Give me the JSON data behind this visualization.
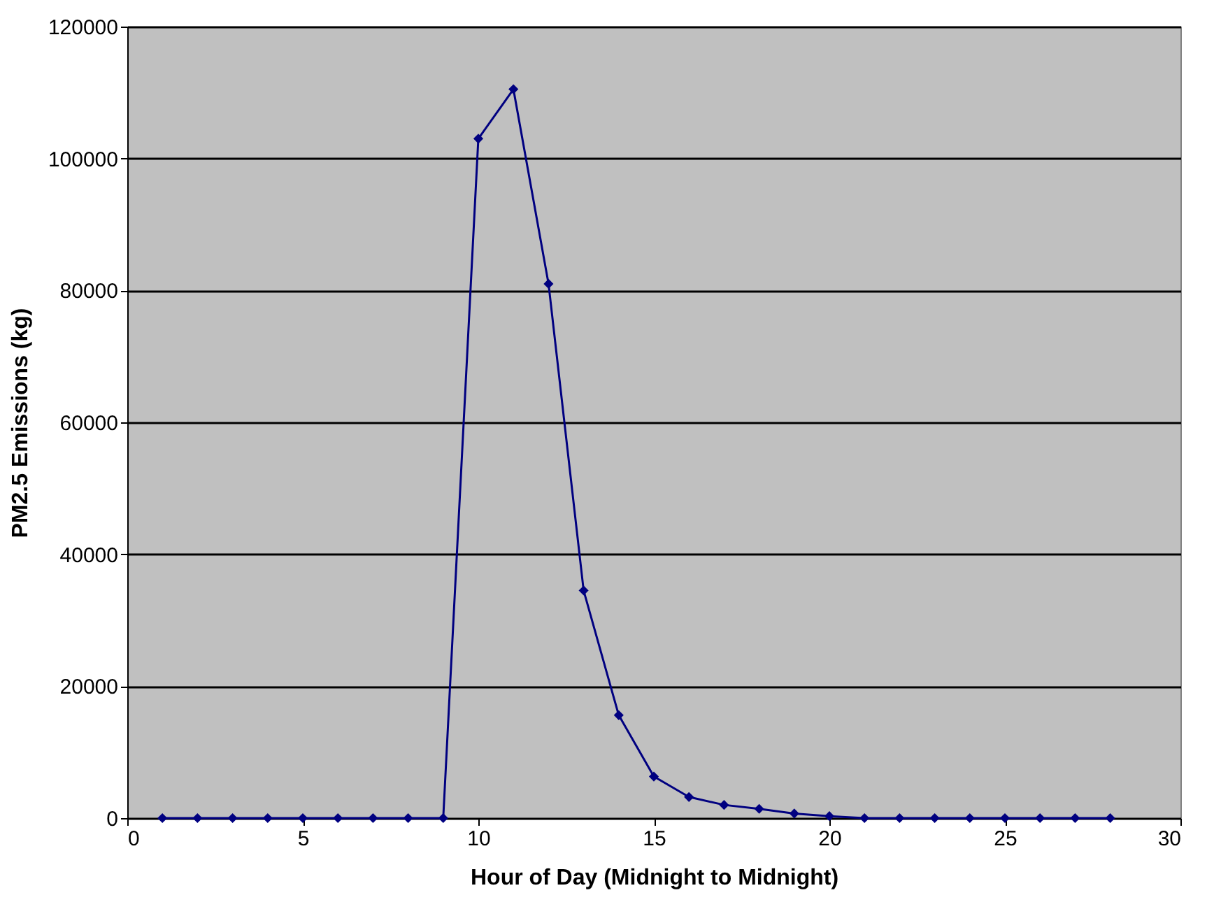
{
  "chart_data": {
    "type": "line",
    "xlabel": "Hour of Day (Midnight to Midnight)",
    "ylabel": "PM2.5 Emissions (kg)",
    "x": [
      1,
      2,
      3,
      4,
      5,
      6,
      7,
      8,
      9,
      10,
      11,
      12,
      13,
      14,
      15,
      16,
      17,
      18,
      19,
      20,
      21,
      22,
      23,
      24,
      25,
      26,
      27,
      28
    ],
    "series": [
      {
        "color": "#000080",
        "values": [
          0,
          0,
          0,
          0,
          0,
          0,
          0,
          0,
          0,
          103000,
          110500,
          81000,
          34500,
          15600,
          6300,
          3200,
          2000,
          1400,
          700,
          300,
          0,
          0,
          0,
          0,
          0,
          0,
          0,
          0
        ]
      }
    ],
    "xlim": [
      0,
      30
    ],
    "xticks": [
      0,
      5,
      10,
      15,
      20,
      25,
      30
    ],
    "ylim": [
      0,
      120000
    ],
    "yticks": [
      0,
      20000,
      40000,
      60000,
      80000,
      100000,
      120000
    ],
    "grid": "y",
    "marker": "diamond",
    "line_style": "solid"
  }
}
